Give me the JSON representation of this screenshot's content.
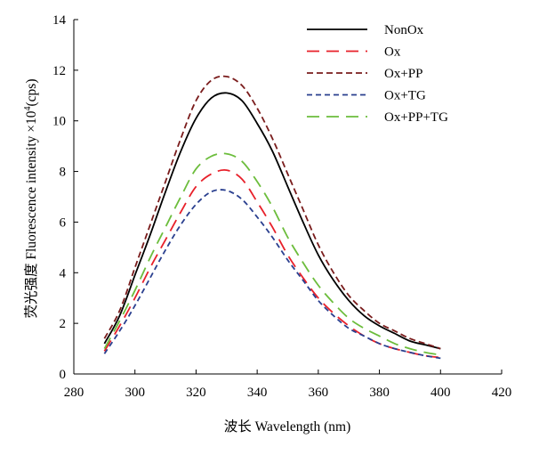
{
  "chart_data": {
    "type": "line",
    "title": "",
    "xlabel": "波长 Wavelength (nm)",
    "ylabel_main": "荧光强度 Fluorescence intensity ×10",
    "ylabel_sup": "4",
    "ylabel_unit": "(cps)",
    "xlim": [
      280,
      420
    ],
    "ylim": [
      0,
      14
    ],
    "xticks": [
      280,
      300,
      320,
      340,
      360,
      380,
      400,
      420
    ],
    "yticks": [
      0,
      2,
      4,
      6,
      8,
      10,
      12,
      14
    ],
    "grid": false,
    "legend_position": "top-right",
    "x": [
      290,
      295,
      300,
      305,
      310,
      315,
      320,
      325,
      330,
      335,
      340,
      345,
      350,
      355,
      360,
      365,
      370,
      375,
      380,
      385,
      390,
      395,
      400
    ],
    "series": [
      {
        "name": "NonOx",
        "color": "#000000",
        "dash": "solid",
        "values": [
          1.2,
          2.3,
          3.9,
          5.5,
          7.2,
          8.8,
          10.1,
          10.9,
          11.1,
          10.8,
          9.9,
          8.8,
          7.4,
          6.0,
          4.7,
          3.7,
          2.9,
          2.3,
          1.9,
          1.6,
          1.3,
          1.15,
          1.0
        ]
      },
      {
        "name": "Ox",
        "color": "#e8202a",
        "dash": "long",
        "values": [
          0.9,
          1.9,
          3.0,
          4.2,
          5.3,
          6.4,
          7.4,
          7.9,
          8.05,
          7.7,
          6.8,
          5.8,
          4.7,
          3.8,
          3.0,
          2.4,
          1.9,
          1.5,
          1.2,
          1.0,
          0.85,
          0.72,
          0.65
        ]
      },
      {
        "name": "Ox+PP",
        "color": "#7a1c1c",
        "dash": "medium",
        "values": [
          1.4,
          2.5,
          4.2,
          5.9,
          7.6,
          9.3,
          10.8,
          11.6,
          11.75,
          11.4,
          10.5,
          9.3,
          7.9,
          6.5,
          5.1,
          4.0,
          3.1,
          2.5,
          2.0,
          1.7,
          1.4,
          1.2,
          1.0
        ]
      },
      {
        "name": "Ox+TG",
        "color": "#2a3f8f",
        "dash": "short",
        "values": [
          0.8,
          1.7,
          2.7,
          3.8,
          4.9,
          5.9,
          6.7,
          7.2,
          7.25,
          6.9,
          6.2,
          5.4,
          4.5,
          3.7,
          2.9,
          2.3,
          1.8,
          1.5,
          1.2,
          1.0,
          0.85,
          0.72,
          0.62
        ]
      },
      {
        "name": "Ox+PP+TG",
        "color": "#6cbd3c",
        "dash": "long",
        "values": [
          1.0,
          2.1,
          3.3,
          4.6,
          5.8,
          7.0,
          8.1,
          8.6,
          8.7,
          8.4,
          7.6,
          6.6,
          5.4,
          4.4,
          3.5,
          2.8,
          2.2,
          1.8,
          1.5,
          1.2,
          1.0,
          0.85,
          0.75
        ]
      }
    ]
  }
}
